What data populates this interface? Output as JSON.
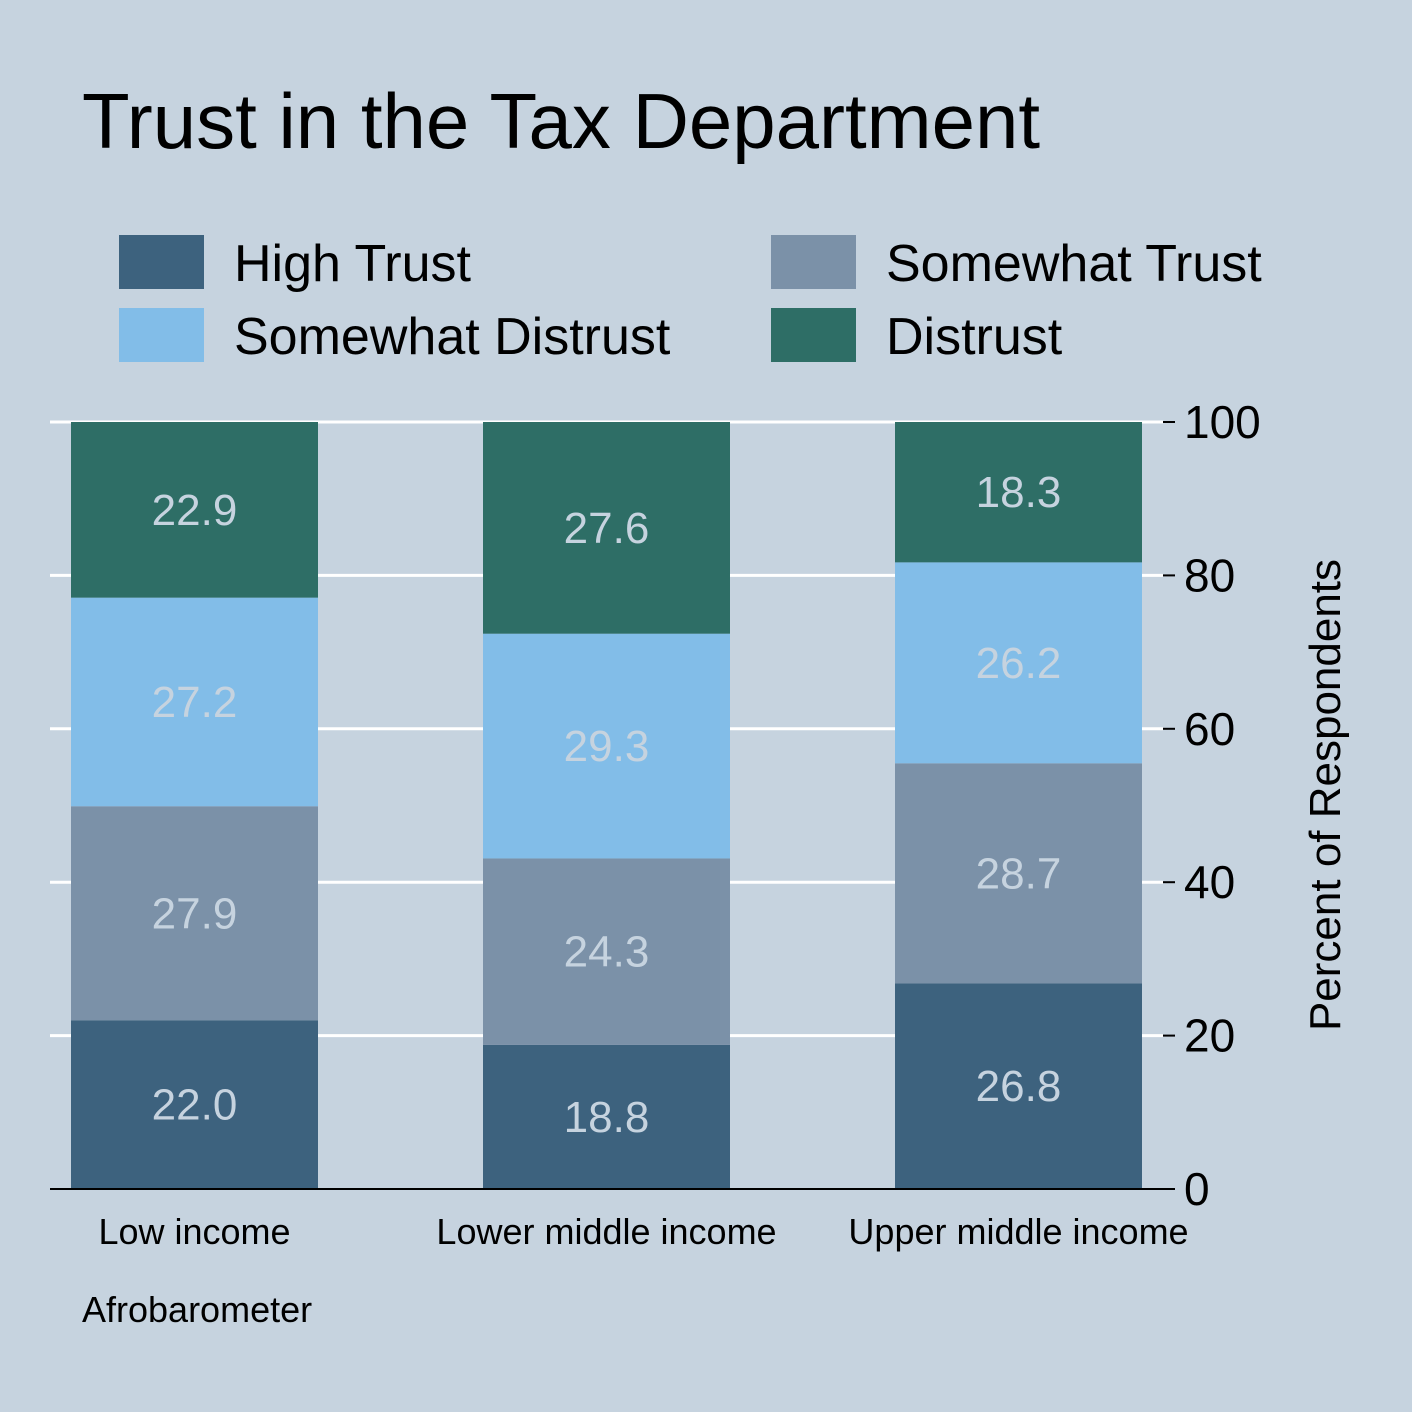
{
  "chart_data": {
    "type": "bar",
    "stacked": true,
    "title": "Trust in the Tax Department",
    "caption": "Afrobarometer",
    "ylabel": "Percent of Respondents",
    "xlabel": "",
    "ylim": [
      0,
      100
    ],
    "yticks": [
      0,
      20,
      40,
      60,
      80,
      100
    ],
    "y_axis_side": "right",
    "grid": true,
    "legend_position": "top",
    "categories": [
      "Low income",
      "Lower middle income",
      "Upper middle income"
    ],
    "series": [
      {
        "name": "High Trust",
        "color": "#3d627e",
        "values": [
          22.0,
          18.8,
          26.8
        ]
      },
      {
        "name": "Somewhat Trust",
        "color": "#7b91a8",
        "values": [
          27.9,
          24.3,
          28.7
        ]
      },
      {
        "name": "Somewhat Distrust",
        "color": "#82bde8",
        "values": [
          27.2,
          29.3,
          26.2
        ]
      },
      {
        "name": "Distrust",
        "color": "#2e6e66",
        "values": [
          22.9,
          27.6,
          18.3
        ]
      }
    ],
    "label_color": "#c6d3df",
    "background_color": "#c6d3df",
    "grid_color": "#ffffff"
  }
}
